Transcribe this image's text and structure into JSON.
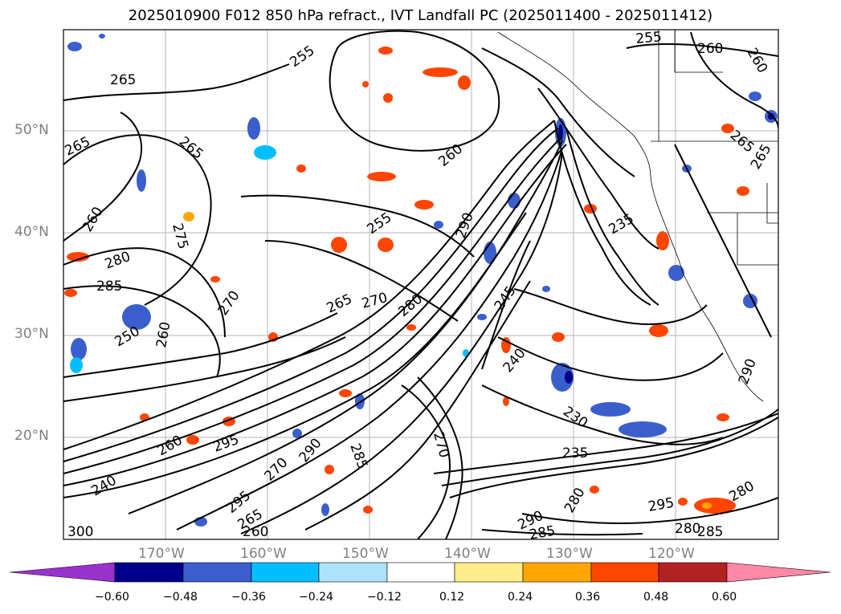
{
  "title": "2025010900 F012 850 hPa refract., IVT Landfall PC (2025011400 - 2025011412)",
  "lat_labels": [
    "50°N",
    "40°N",
    "30°N",
    "20°N"
  ],
  "lon_labels": [
    "170°W",
    "160°W",
    "150°W",
    "140°W",
    "130°W",
    "120°W"
  ],
  "contour_labels": [
    "265",
    "265",
    "265",
    "260",
    "275",
    "280",
    "285",
    "255",
    "270",
    "265",
    "270",
    "260",
    "250",
    "260",
    "255",
    "255",
    "260",
    "265",
    "260",
    "265",
    "235",
    "245",
    "240",
    "230",
    "235",
    "280",
    "290",
    "285",
    "295",
    "280",
    "285",
    "280",
    "300",
    "295",
    "260",
    "290",
    "260",
    "295",
    "285",
    "270",
    "280",
    "290",
    "270",
    "265",
    "240",
    "290"
  ],
  "colorbar": {
    "ticks": [
      "−0.60",
      "−0.48",
      "−0.36",
      "−0.24",
      "−0.12",
      "0.12",
      "0.24",
      "0.36",
      "0.48",
      "0.60"
    ],
    "colors": [
      "#9932CC",
      "#00008B",
      "#3A5FCD",
      "#00BFFF",
      "#ADE2FA",
      "#FFFFFF",
      "#FFEC8B",
      "#FFA500",
      "#FF4500",
      "#B22222",
      "#FF88AA"
    ]
  }
}
